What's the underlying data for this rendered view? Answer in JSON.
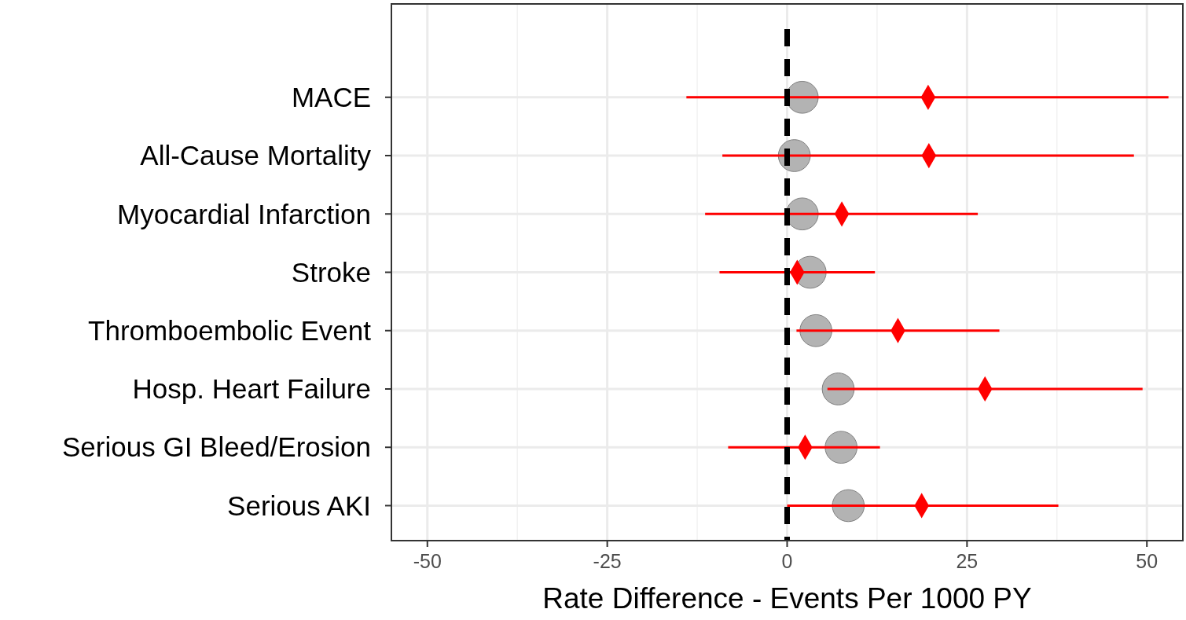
{
  "chart_data": {
    "type": "scatter",
    "xlabel": "Rate Difference - Events Per 1000 PY",
    "orientation": "horizontal",
    "categories": [
      "MACE",
      "All-Cause Mortality",
      "Myocardial Infarction",
      "Stroke",
      "Thromboembolic Event",
      "Hosp. Heart Failure",
      "Serious GI Bleed/Erosion",
      "Serious AKI"
    ],
    "series": [
      {
        "color": "#b3b3b3",
        "marker": "circle",
        "values": [
          2.1,
          1.0,
          2.1,
          3.2,
          4.0,
          7.1,
          7.5,
          8.5
        ]
      },
      {
        "color": "#ff0000",
        "marker": "diamond",
        "values": [
          19.6,
          19.7,
          7.6,
          1.4,
          15.4,
          27.5,
          2.5,
          18.7
        ],
        "errors": [
          [
            -14.0,
            53.0
          ],
          [
            -9.0,
            48.2
          ],
          [
            -11.4,
            26.5
          ],
          [
            -9.4,
            12.2
          ],
          [
            1.3,
            29.5
          ],
          [
            5.6,
            49.4
          ],
          [
            -8.2,
            12.9
          ],
          [
            0,
            37.7
          ]
        ]
      }
    ],
    "xlim": [
      -55,
      55
    ],
    "xticks": [
      -50,
      -25,
      0,
      25,
      50
    ],
    "ref_lines": [
      {
        "axis": "x",
        "value": 0,
        "color": "#000000",
        "line_style": "dashed"
      }
    ],
    "grid": true
  }
}
